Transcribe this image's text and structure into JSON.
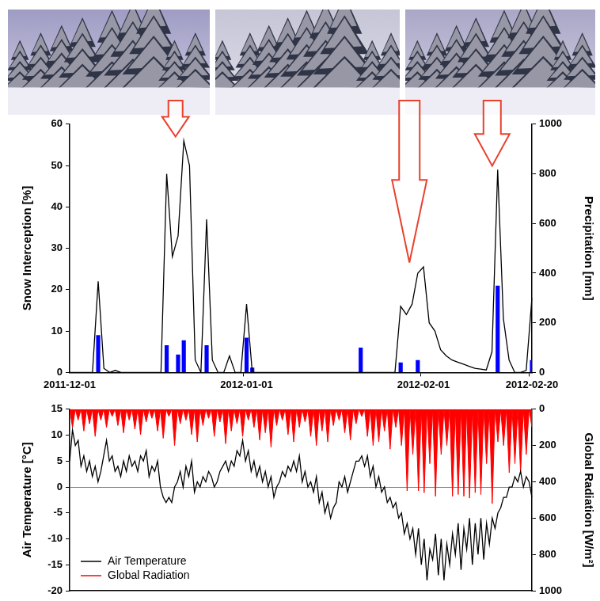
{
  "chart_data": [
    {
      "type": "bar",
      "y_label": "Snow Interception [%]",
      "y2_label": "Precipitation [mm]",
      "categories": [
        "2011-12-01",
        null,
        null,
        null,
        null,
        null,
        null,
        null,
        null,
        null,
        null,
        null,
        null,
        null,
        null,
        null,
        null,
        null,
        null,
        null,
        null,
        null,
        null,
        null,
        null,
        null,
        null,
        null,
        null,
        null,
        null,
        "2012-01-01",
        null,
        null,
        null,
        null,
        null,
        null,
        null,
        null,
        null,
        null,
        null,
        null,
        null,
        null,
        null,
        null,
        null,
        null,
        null,
        null,
        null,
        null,
        null,
        null,
        null,
        null,
        null,
        null,
        null,
        null,
        "2012-02-01",
        null,
        null,
        null,
        null,
        null,
        null,
        null,
        null,
        null,
        null,
        null,
        null,
        null,
        null,
        null,
        null,
        null,
        null,
        "2012-02-20"
      ],
      "series": [
        {
          "type": "line",
          "color": "#000000",
          "values": [
            0,
            0,
            0,
            0,
            0,
            22,
            1,
            0,
            0.5,
            0,
            0,
            0,
            0,
            0,
            0,
            0,
            0,
            48,
            28,
            33,
            56,
            50,
            3,
            0,
            37,
            3,
            0,
            0,
            4,
            0,
            0,
            16.5,
            0,
            0,
            0,
            0,
            0,
            0,
            0,
            0,
            0,
            0,
            0,
            0,
            0,
            0,
            0,
            0,
            0,
            0,
            0,
            0,
            0,
            0,
            0,
            0,
            0,
            0,
            16,
            14,
            16.5,
            24,
            25.5,
            12,
            10,
            5.5,
            4,
            3,
            2.5,
            2,
            1.5,
            1,
            0.8,
            0.6,
            5,
            49,
            13,
            3,
            0,
            0,
            0.5,
            18
          ]
        },
        {
          "type": "bar",
          "color": "#0000ff",
          "axis": "y2",
          "values": [
            0,
            0,
            0,
            0,
            0,
            150,
            0,
            0,
            0,
            0,
            0,
            0,
            0,
            0,
            0,
            0,
            0,
            110,
            0,
            72,
            130,
            0,
            0,
            0,
            110,
            0,
            0,
            0,
            0,
            0,
            0,
            140,
            20,
            0,
            0,
            0,
            0,
            0,
            0,
            0,
            0,
            0,
            0,
            0,
            0,
            0,
            0,
            0,
            0,
            0,
            0,
            100,
            0,
            0,
            0,
            0,
            0,
            0,
            40,
            0,
            0,
            50,
            0,
            0,
            0,
            0,
            0,
            0,
            0,
            0,
            0,
            0,
            0,
            0,
            0,
            350,
            0,
            0,
            0,
            0,
            0,
            50
          ]
        }
      ],
      "ylim": [
        0,
        60
      ],
      "yticks": [
        0,
        10,
        20,
        30,
        40,
        50,
        60
      ],
      "y2lim": [
        0,
        1000
      ],
      "y2ticks": [
        0,
        200,
        400,
        600,
        800,
        1000
      ],
      "grid": false
    },
    {
      "type": "line",
      "y_label": "Air Temperature [°C]",
      "y2_label": "Global Radiation [W/m²]",
      "categories": [
        null,
        null,
        null,
        null,
        null,
        null,
        null,
        null,
        null,
        null,
        null,
        null,
        null,
        null,
        null,
        null,
        null,
        null,
        null,
        null,
        null,
        null,
        null,
        null,
        null,
        null,
        null,
        null,
        null,
        null,
        null,
        null,
        null,
        null,
        null,
        null,
        null,
        null,
        null,
        null,
        null,
        null,
        null,
        null,
        null,
        null,
        null,
        null,
        null,
        null,
        null,
        null,
        null,
        null,
        null,
        null,
        null,
        null,
        null,
        null,
        null,
        null,
        null,
        null,
        null,
        null,
        null,
        null,
        null,
        null,
        null,
        null,
        null,
        null,
        null,
        null,
        null,
        null,
        null,
        null,
        null,
        null,
        null,
        null,
        null,
        null,
        null,
        null,
        null,
        null,
        null,
        null,
        null,
        null,
        null,
        null,
        null,
        null,
        null,
        null,
        null,
        null,
        null,
        null,
        null,
        null,
        null,
        null,
        null,
        null,
        null,
        null,
        null,
        null,
        null,
        null,
        null,
        null,
        null,
        null,
        null,
        null,
        null,
        null,
        null,
        null,
        null,
        null,
        null,
        null,
        null,
        null,
        null,
        null,
        null,
        null,
        null,
        null,
        null,
        null,
        null,
        null,
        null,
        null,
        null,
        null,
        null,
        null,
        null,
        null,
        null,
        null,
        null,
        null,
        null,
        null,
        null,
        null,
        null,
        null,
        null,
        null,
        null,
        null
      ],
      "series": [
        {
          "name": "Air Temperature",
          "color": "#000000",
          "values": [
            5,
            11,
            8,
            9,
            4,
            6,
            3,
            5,
            2,
            4,
            1,
            3,
            6,
            9,
            5,
            6,
            3,
            4,
            2,
            5,
            3,
            6,
            4,
            5,
            3,
            6,
            5,
            7,
            2,
            4,
            3,
            5,
            0,
            -2,
            -3,
            -2,
            -3,
            0,
            1,
            3,
            0,
            4,
            2,
            5,
            -1,
            1,
            0,
            2,
            1,
            3,
            2,
            0,
            1,
            3,
            4,
            5,
            3,
            5,
            4,
            7,
            6,
            9,
            5,
            7,
            3,
            5,
            2,
            4,
            1,
            3,
            0,
            2,
            -2,
            0,
            1,
            3,
            2,
            4,
            3,
            5,
            3,
            6,
            1,
            3,
            0,
            1,
            -1,
            2,
            -3,
            -1,
            -5,
            -3,
            -6,
            -4,
            -3,
            1,
            0,
            2,
            -1,
            1,
            3,
            5,
            5,
            6,
            4,
            6,
            2,
            4,
            0,
            2,
            -1,
            0,
            -3,
            -2,
            -4,
            -3,
            -6,
            -5,
            -9,
            -7,
            -10,
            -8,
            -13,
            -8,
            -15,
            -10,
            -18,
            -12,
            -14,
            -9,
            -17,
            -10,
            -18,
            -11,
            -15,
            -9,
            -13,
            -7,
            -16,
            -8,
            -12,
            -6,
            -15,
            -7,
            -13,
            -6,
            -14,
            -7,
            -11,
            -6,
            -8,
            -5,
            -4,
            -2,
            -2,
            0,
            0,
            2,
            1,
            3,
            0,
            2,
            1,
            -2
          ]
        },
        {
          "name": "Global Radiation",
          "color": "#ff0000",
          "axis": "y2",
          "values": [
            0,
            100,
            0,
            60,
            0,
            120,
            0,
            80,
            0,
            150,
            0,
            60,
            0,
            100,
            0,
            40,
            0,
            90,
            0,
            130,
            0,
            60,
            0,
            110,
            0,
            140,
            0,
            70,
            0,
            50,
            0,
            120,
            0,
            160,
            0,
            40,
            0,
            200,
            0,
            80,
            0,
            60,
            0,
            140,
            0,
            180,
            0,
            90,
            0,
            50,
            0,
            150,
            0,
            70,
            0,
            190,
            0,
            120,
            0,
            80,
            0,
            150,
            0,
            60,
            0,
            100,
            0,
            170,
            0,
            130,
            0,
            210,
            0,
            90,
            0,
            60,
            0,
            140,
            0,
            180,
            0,
            100,
            0,
            70,
            0,
            150,
            0,
            200,
            0,
            120,
            0,
            180,
            0,
            90,
            0,
            60,
            0,
            130,
            0,
            170,
            0,
            80,
            0,
            40,
            0,
            150,
            0,
            200,
            0,
            180,
            0,
            120,
            0,
            220,
            0,
            100,
            0,
            200,
            0,
            450,
            0,
            250,
            0,
            450,
            0,
            460,
            0,
            300,
            0,
            480,
            0,
            250,
            0,
            200,
            0,
            480,
            0,
            470,
            0,
            480,
            0,
            490,
            0,
            460,
            0,
            470,
            0,
            300,
            0,
            520,
            0,
            180,
            0,
            200,
            0,
            350,
            0,
            300,
            0,
            350,
            0,
            250,
            0,
            100
          ]
        }
      ],
      "ylim": [
        -20,
        15
      ],
      "yticks": [
        -20,
        -15,
        -10,
        -5,
        0,
        5,
        10,
        15
      ],
      "y2lim": [
        1000,
        0
      ],
      "y2ticks": [
        0,
        200,
        400,
        600,
        800,
        1000
      ],
      "grid": false,
      "legend": "lower left"
    }
  ]
}
